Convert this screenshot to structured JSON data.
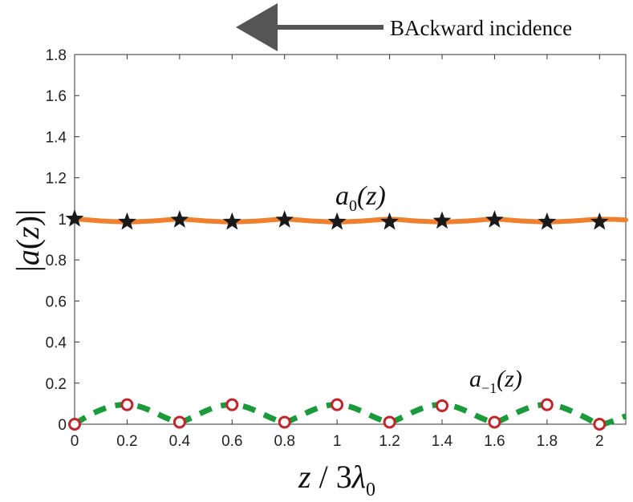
{
  "chart_data": {
    "type": "line",
    "annotation": "BAckward incidence",
    "xlabel": {
      "var": "z",
      "sep": " / ",
      "coef": "3",
      "sym": "λ",
      "sub": "0"
    },
    "ylabel": {
      "bar": "|",
      "var": "a",
      "open": "(",
      "arg": "z",
      "close": ")"
    },
    "xlim": [
      0,
      2.1
    ],
    "ylim": [
      0,
      1.8
    ],
    "xticks": [
      "0",
      "0.2",
      "0.4",
      "0.6",
      "0.8",
      "1",
      "1.2",
      "1.4",
      "1.6",
      "1.8",
      "2"
    ],
    "yticks": [
      "0",
      "0.2",
      "0.4",
      "0.6",
      "0.8",
      "1",
      "1.2",
      "1.4",
      "1.6",
      "1.8"
    ],
    "grid": false,
    "series": [
      {
        "label": {
          "var": "a",
          "sub": "0",
          "arg": "(z)"
        },
        "color": "#f07f2e",
        "line_style": "solid",
        "marker": "star",
        "marker_color": "#1a1a1a",
        "x": [
          0,
          0.1,
          0.2,
          0.3,
          0.4,
          0.5,
          0.6,
          0.7,
          0.8,
          0.9,
          1.0,
          1.1,
          1.2,
          1.3,
          1.4,
          1.5,
          1.6,
          1.7,
          1.8,
          1.9,
          2.0,
          2.1
        ],
        "y": [
          1.0,
          0.99,
          0.985,
          0.99,
          0.998,
          0.99,
          0.985,
          0.99,
          0.998,
          0.99,
          0.985,
          0.99,
          0.998,
          0.99,
          0.985,
          0.99,
          0.998,
          0.99,
          0.985,
          0.99,
          0.998,
          0.995
        ],
        "marker_x": [
          0,
          0.2,
          0.4,
          0.6,
          0.8,
          1.0,
          1.2,
          1.4,
          1.6,
          1.8,
          2.0
        ],
        "marker_y": [
          1.0,
          0.985,
          0.995,
          0.985,
          0.995,
          0.985,
          0.985,
          0.99,
          0.995,
          0.985,
          0.985
        ]
      },
      {
        "label": {
          "var": "a",
          "sub": "−1",
          "arg": "(z)"
        },
        "color": "#1a9a3a",
        "line_style": "dashed",
        "marker": "circle",
        "marker_color": "#c0262c",
        "x": [
          0,
          0.05,
          0.1,
          0.15,
          0.2,
          0.25,
          0.3,
          0.35,
          0.4,
          0.45,
          0.5,
          0.55,
          0.6,
          0.65,
          0.7,
          0.75,
          0.8,
          0.85,
          0.9,
          0.95,
          1.0,
          1.05,
          1.1,
          1.15,
          1.2,
          1.25,
          1.3,
          1.35,
          1.4,
          1.45,
          1.5,
          1.55,
          1.6,
          1.65,
          1.7,
          1.75,
          1.8,
          1.85,
          1.9,
          1.95,
          2.0,
          2.05,
          2.1
        ],
        "y": [
          0.0,
          0.04,
          0.07,
          0.09,
          0.095,
          0.085,
          0.06,
          0.03,
          0.01,
          0.035,
          0.065,
          0.088,
          0.095,
          0.085,
          0.06,
          0.03,
          0.01,
          0.035,
          0.065,
          0.088,
          0.095,
          0.085,
          0.06,
          0.03,
          0.01,
          0.035,
          0.065,
          0.088,
          0.095,
          0.085,
          0.06,
          0.03,
          0.01,
          0.035,
          0.065,
          0.088,
          0.095,
          0.085,
          0.06,
          0.03,
          0.0,
          0.015,
          0.04
        ],
        "marker_x": [
          0,
          0.2,
          0.4,
          0.6,
          0.8,
          1.0,
          1.2,
          1.4,
          1.6,
          1.8,
          2.0
        ],
        "marker_y": [
          0.0,
          0.095,
          0.01,
          0.095,
          0.01,
          0.095,
          0.01,
          0.09,
          0.01,
          0.095,
          0.0
        ]
      }
    ]
  }
}
